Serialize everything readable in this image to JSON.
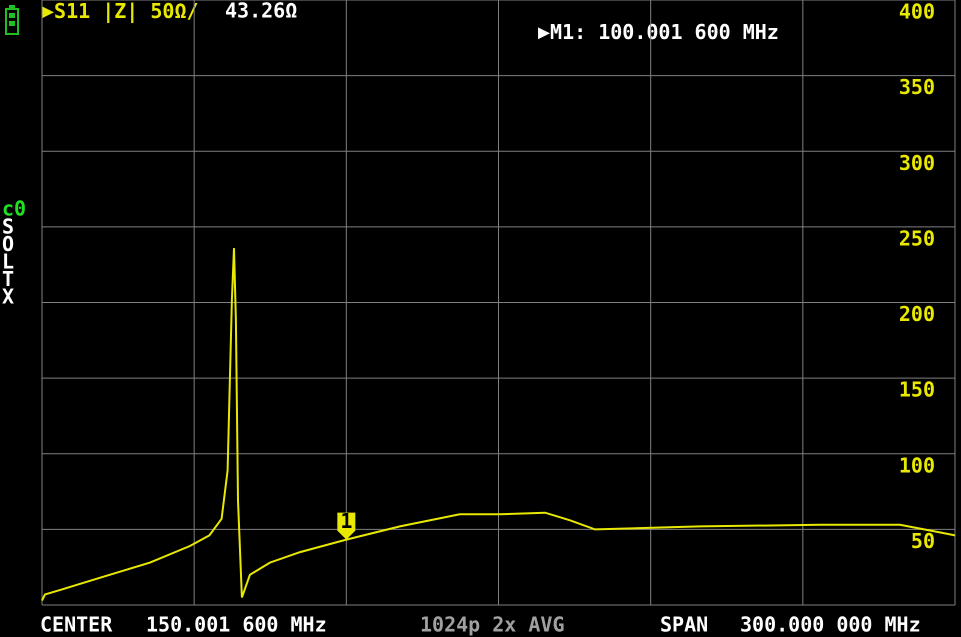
{
  "chart_data": {
    "type": "line",
    "trace_label": "S11 |Z| 50Ω/",
    "trace_value": "43.26Ω",
    "marker_readout": "M1: 100.001 600 MHz",
    "center_label": "CENTER",
    "center_value": "150.001 600 MHz",
    "points_avg": "1024p 2x AVG",
    "span_label": "SPAN",
    "span_value": "300.000 000 MHz",
    "channel": "c0",
    "calibration": [
      "S",
      "O",
      "L",
      "T",
      "X"
    ],
    "marker": {
      "label": "1",
      "x": 100.0016,
      "y": 43.26
    },
    "x": [
      0,
      1,
      6,
      19,
      35.5,
      48.6,
      55,
      59,
      61,
      62.4,
      63.1,
      63.7,
      64.4,
      65.7,
      68.3,
      74.9,
      84.8,
      100.0016,
      117.6,
      137.3,
      150.5,
      165.3,
      173.5,
      181.7,
      216.2,
      255.6,
      281.9,
      295,
      300
    ],
    "series": [
      {
        "name": "S11 |Z|",
        "color": "#e8e800",
        "values": [
          3,
          7,
          10,
          18,
          28,
          39,
          46,
          57,
          89,
          202,
          236,
          188,
          69,
          5,
          20,
          28,
          35,
          43.26,
          52,
          60,
          60,
          61,
          56,
          50,
          52,
          53,
          53,
          48,
          46
        ]
      }
    ],
    "xlim": [
      0,
      300
    ],
    "xticks": [
      0,
      50,
      100,
      150,
      200,
      250,
      300
    ],
    "ylim": [
      0,
      400
    ],
    "yticks": [
      50,
      100,
      150,
      200,
      250,
      300,
      350,
      400
    ],
    "grid": true
  }
}
